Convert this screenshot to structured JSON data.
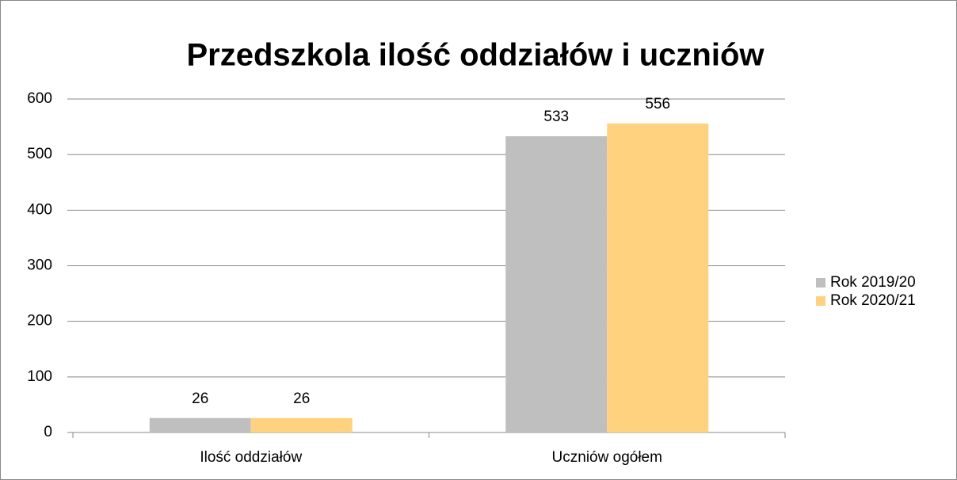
{
  "chart_data": {
    "type": "bar",
    "title": "Przedszkola ilość oddziałów i uczniów",
    "categories": [
      "Ilość oddziałów",
      "Uczniów ogółem"
    ],
    "series": [
      {
        "name": "Rok 2019/20",
        "color": "#bfbfbf",
        "values": [
          26,
          533
        ]
      },
      {
        "name": "Rok 2020/21",
        "color": "#ffd280",
        "values": [
          26,
          556
        ]
      }
    ],
    "ylim": [
      0,
      600
    ],
    "yticks": [
      0,
      100,
      200,
      300,
      400,
      500,
      600
    ],
    "grid": true,
    "legend": "right"
  }
}
